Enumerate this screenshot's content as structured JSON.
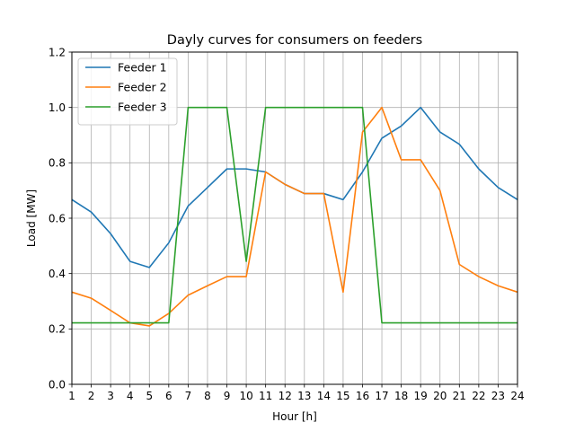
{
  "chart_data": {
    "type": "line",
    "title": "Dayly curves for consumers on feeders",
    "xlabel": "Hour [h]",
    "ylabel": "Load [MW]",
    "xlim": [
      1,
      24
    ],
    "ylim": [
      0.0,
      1.2
    ],
    "x": [
      1,
      2,
      3,
      4,
      5,
      6,
      7,
      8,
      9,
      10,
      11,
      12,
      13,
      14,
      15,
      16,
      17,
      18,
      19,
      20,
      21,
      22,
      23,
      24
    ],
    "x_ticks": [
      "1",
      "2",
      "3",
      "4",
      "5",
      "6",
      "7",
      "8",
      "9",
      "10",
      "11",
      "12",
      "13",
      "14",
      "15",
      "16",
      "17",
      "18",
      "19",
      "20",
      "21",
      "22",
      "23",
      "24"
    ],
    "y_ticks": [
      "0.0",
      "0.2",
      "0.4",
      "0.6",
      "0.8",
      "1.0",
      "1.2"
    ],
    "grid": true,
    "legend_position": "top-left",
    "series": [
      {
        "name": "Feeder 1",
        "color": "#1f77b4",
        "values": [
          0.667,
          0.622,
          0.544,
          0.444,
          0.422,
          0.511,
          0.644,
          0.711,
          0.778,
          0.778,
          0.767,
          0.722,
          0.689,
          0.689,
          0.667,
          0.767,
          0.889,
          0.933,
          1.0,
          0.911,
          0.867,
          0.778,
          0.711,
          0.667
        ]
      },
      {
        "name": "Feeder 2",
        "color": "#ff7f0e",
        "values": [
          0.333,
          0.311,
          0.267,
          0.222,
          0.211,
          0.256,
          0.322,
          0.356,
          0.389,
          0.389,
          0.767,
          0.722,
          0.689,
          0.689,
          0.333,
          0.911,
          1.0,
          0.811,
          0.811,
          0.7,
          0.433,
          0.389,
          0.356,
          0.333
        ]
      },
      {
        "name": "Feeder 3",
        "color": "#2ca02c",
        "values": [
          0.222,
          0.222,
          0.222,
          0.222,
          0.222,
          0.222,
          1.0,
          1.0,
          1.0,
          0.444,
          1.0,
          1.0,
          1.0,
          1.0,
          1.0,
          1.0,
          0.222,
          0.222,
          0.222,
          0.222,
          0.222,
          0.222,
          0.222,
          0.222
        ]
      }
    ]
  }
}
